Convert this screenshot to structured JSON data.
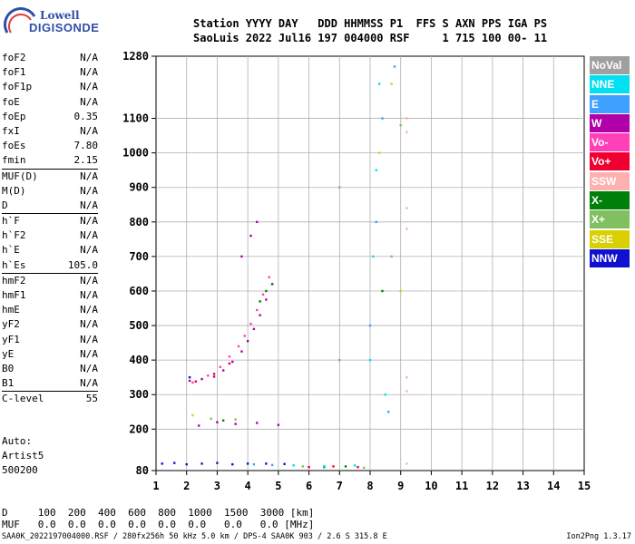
{
  "logo": {
    "line1": "Lowell",
    "line2": "DIGISONDE"
  },
  "header": {
    "line1": "Station YYYY DAY   DDD HHMMSS P1  FFS S AXN PPS IGA PS",
    "line2": "SaoLuis 2022 Jul16 197 004000 RSF     1 715 100 00- 11"
  },
  "params": [
    {
      "name": "foF2",
      "value": "N/A"
    },
    {
      "name": "foF1",
      "value": "N/A"
    },
    {
      "name": "foF1p",
      "value": "N/A"
    },
    {
      "name": "foE",
      "value": "N/A"
    },
    {
      "name": "foEp",
      "value": "0.35"
    },
    {
      "name": "fxI",
      "value": "N/A"
    },
    {
      "name": "foEs",
      "value": "7.80"
    },
    {
      "name": "fmin",
      "value": "2.15"
    },
    {
      "name": "MUF(D)",
      "value": "N/A",
      "sep": true
    },
    {
      "name": "M(D)",
      "value": "N/A"
    },
    {
      "name": "D",
      "value": "N/A"
    },
    {
      "name": "h`F",
      "value": "N/A",
      "sep": true
    },
    {
      "name": "h`F2",
      "value": "N/A"
    },
    {
      "name": "h`E",
      "value": "N/A"
    },
    {
      "name": "h`Es",
      "value": "105.0"
    },
    {
      "name": "hmF2",
      "value": "N/A",
      "sep": true
    },
    {
      "name": "hmF1",
      "value": "N/A"
    },
    {
      "name": "hmE",
      "value": "N/A"
    },
    {
      "name": "yF2",
      "value": "N/A"
    },
    {
      "name": "yF1",
      "value": "N/A"
    },
    {
      "name": "yE",
      "value": "N/A"
    },
    {
      "name": "B0",
      "value": "N/A"
    },
    {
      "name": "B1",
      "value": "N/A"
    },
    {
      "name": "C-level",
      "value": "55",
      "sep": true
    }
  ],
  "auto": {
    "line1": "Auto:",
    "line2": "Artist5",
    "line3": "500200"
  },
  "legend": [
    {
      "label": "NoVal",
      "color": "#a0a0a0"
    },
    {
      "label": "NNE",
      "color": "#00e0f0"
    },
    {
      "label": "E",
      "color": "#3fa0ff"
    },
    {
      "label": "W",
      "color": "#b000a8"
    },
    {
      "label": "Vo-",
      "color": "#ff40b8"
    },
    {
      "label": "Vo+",
      "color": "#f00030"
    },
    {
      "label": "SSW",
      "color": "#ffb0b0"
    },
    {
      "label": "X-",
      "color": "#00800a"
    },
    {
      "label": "X+",
      "color": "#80c060"
    },
    {
      "label": "SSE",
      "color": "#d8d000"
    },
    {
      "label": "NNW",
      "color": "#1010d0"
    }
  ],
  "bottom": {
    "d_row": "D     100  200  400  600  800  1000  1500  3000 [km]",
    "muf_row": "MUF   0.0  0.0  0.0  0.0  0.0  0.0   0.0   0.0 [MHz]",
    "footer": "SAA0K_2022197004000.RSF / 280fx256h 50 kHz 5.0 km / DPS-4 SAA0K 903 / 2.6 S 315.8 E",
    "version": "Ion2Png 1.3.17"
  },
  "chart_data": {
    "type": "scatter",
    "title": "",
    "xlabel": "",
    "ylabel": "",
    "xlim": [
      1,
      15
    ],
    "ylim": [
      80,
      1280
    ],
    "x_ticks": [
      1,
      2,
      3,
      4,
      5,
      6,
      7,
      8,
      9,
      10,
      11,
      12,
      13,
      14,
      15
    ],
    "y_ticks": [
      80,
      200,
      300,
      400,
      500,
      600,
      700,
      800,
      900,
      1000,
      1100,
      1280
    ],
    "grid": true,
    "legend_placement": "right",
    "series": [
      {
        "name": "W",
        "color": "#b000a8",
        "points": [
          [
            2.1,
            340
          ],
          [
            2.5,
            345
          ],
          [
            2.9,
            352
          ],
          [
            3.2,
            370
          ],
          [
            3.5,
            395
          ],
          [
            3.8,
            425
          ],
          [
            4.0,
            455
          ],
          [
            4.2,
            490
          ],
          [
            4.4,
            530
          ],
          [
            4.6,
            575
          ],
          [
            4.8,
            620
          ],
          [
            2.4,
            210
          ],
          [
            3.0,
            220
          ],
          [
            3.6,
            215
          ],
          [
            4.3,
            218
          ],
          [
            5.0,
            212
          ],
          [
            3.8,
            700
          ],
          [
            4.1,
            760
          ],
          [
            4.3,
            800
          ]
        ]
      },
      {
        "name": "Vo-",
        "color": "#ff40b8",
        "points": [
          [
            2.2,
            335
          ],
          [
            2.7,
            355
          ],
          [
            3.1,
            380
          ],
          [
            3.4,
            410
          ],
          [
            3.7,
            440
          ],
          [
            3.9,
            470
          ],
          [
            4.1,
            505
          ],
          [
            4.3,
            545
          ],
          [
            4.5,
            590
          ],
          [
            4.7,
            640
          ]
        ]
      },
      {
        "name": "Vo+",
        "color": "#f00030",
        "points": [
          [
            2.3,
            338
          ],
          [
            2.9,
            360
          ],
          [
            3.4,
            390
          ],
          [
            6.0,
            90
          ],
          [
            6.8,
            92
          ],
          [
            7.6,
            90
          ]
        ]
      },
      {
        "name": "NNW",
        "color": "#1010d0",
        "points": [
          [
            1.2,
            100
          ],
          [
            1.6,
            102
          ],
          [
            2.0,
            98
          ],
          [
            2.5,
            100
          ],
          [
            3.0,
            102
          ],
          [
            3.5,
            98
          ],
          [
            4.0,
            100
          ],
          [
            4.6,
            100
          ],
          [
            5.2,
            99
          ],
          [
            2.1,
            350
          ]
        ]
      },
      {
        "name": "X-",
        "color": "#00800a",
        "points": [
          [
            4.4,
            570
          ],
          [
            4.6,
            600
          ],
          [
            4.8,
            620
          ],
          [
            3.2,
            225
          ],
          [
            6.5,
            90
          ],
          [
            7.2,
            92
          ],
          [
            8.4,
            600
          ]
        ]
      },
      {
        "name": "X+",
        "color": "#80c060",
        "points": [
          [
            2.8,
            230
          ],
          [
            3.6,
            228
          ],
          [
            5.8,
            92
          ],
          [
            7.8,
            88
          ],
          [
            8.7,
            700
          ],
          [
            9.0,
            1080
          ]
        ]
      },
      {
        "name": "NNE",
        "color": "#00e0f0",
        "points": [
          [
            5.5,
            95
          ],
          [
            6.5,
            93
          ],
          [
            7.5,
            95
          ],
          [
            8.0,
            400
          ],
          [
            8.1,
            700
          ],
          [
            8.2,
            950
          ],
          [
            8.3,
            1200
          ],
          [
            8.5,
            300
          ]
        ]
      },
      {
        "name": "E",
        "color": "#3fa0ff",
        "points": [
          [
            4.2,
            98
          ],
          [
            4.8,
            96
          ],
          [
            8.0,
            500
          ],
          [
            8.2,
            800
          ],
          [
            8.4,
            1100
          ],
          [
            8.6,
            250
          ],
          [
            8.8,
            1250
          ]
        ]
      },
      {
        "name": "SSE",
        "color": "#d8d000",
        "points": [
          [
            2.2,
            240
          ],
          [
            8.3,
            1000
          ],
          [
            8.7,
            1200
          ],
          [
            9.0,
            600
          ]
        ]
      },
      {
        "name": "SSW",
        "color": "#ffb0b0",
        "points": [
          [
            9.2,
            1060
          ],
          [
            9.2,
            1100
          ],
          [
            9.2,
            780
          ],
          [
            9.2,
            840
          ],
          [
            9.2,
            310
          ],
          [
            9.2,
            350
          ],
          [
            9.2,
            100
          ]
        ]
      },
      {
        "name": "NoVal",
        "color": "#a0a0a0",
        "points": [
          [
            7.0,
            400
          ],
          [
            7.0,
            900
          ]
        ]
      }
    ]
  }
}
